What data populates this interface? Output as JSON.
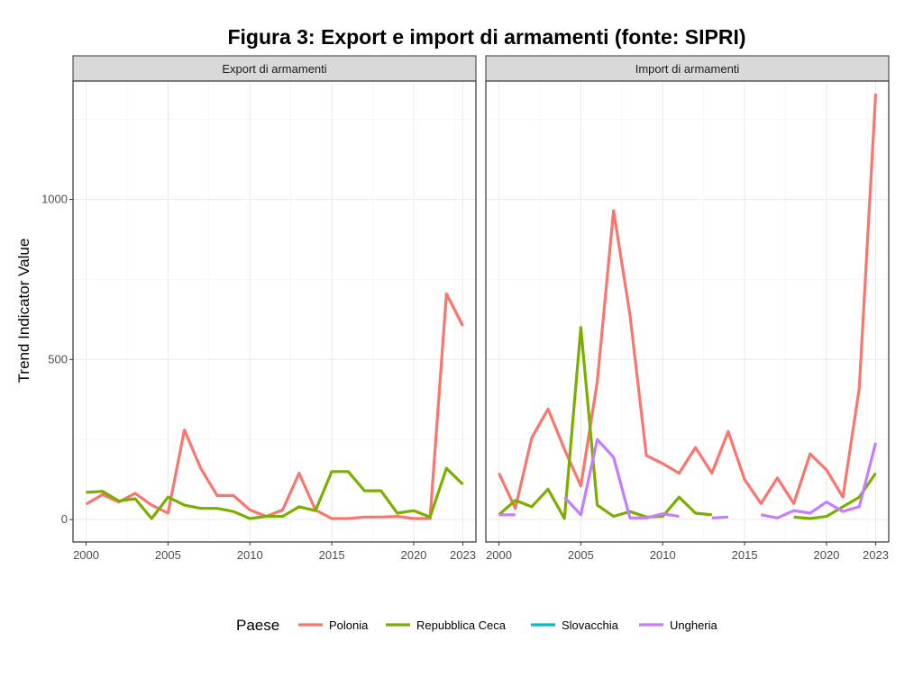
{
  "chart_data": {
    "type": "line",
    "title": "Figura 3: Export e import di armamenti (fonte: SIPRI)",
    "ylabel": "Trend Indicator Value",
    "xlabel": "",
    "ylim": [
      -70,
      1370
    ],
    "xlim": [
      1999.2,
      2023.8
    ],
    "x_ticks": [
      2000,
      2005,
      2010,
      2015,
      2020,
      2023
    ],
    "y_ticks": [
      0,
      500,
      1000
    ],
    "grid": true,
    "legend": {
      "title": "Paese",
      "position": "bottom",
      "entries": [
        {
          "name": "Polonia",
          "color": "#F8766D"
        },
        {
          "name": "Repubblica Ceca",
          "color": "#7CAE00"
        },
        {
          "name": "Slovacchia",
          "color": "#00BFC4"
        },
        {
          "name": "Ungheria",
          "color": "#C77CFF"
        }
      ]
    },
    "panels": [
      {
        "strip": "Export di armamenti",
        "series": [
          {
            "name": "Polonia",
            "color": "#F8766D",
            "segments": [
              [
                [
                  2000,
                  48
                ],
                [
                  2001,
                  78
                ],
                [
                  2002,
                  55
                ],
                [
                  2003,
                  82
                ],
                [
                  2004,
                  45
                ],
                [
                  2005,
                  20
                ],
                [
                  2006,
                  280
                ],
                [
                  2007,
                  160
                ],
                [
                  2008,
                  75
                ],
                [
                  2009,
                  75
                ],
                [
                  2010,
                  30
                ],
                [
                  2011,
                  10
                ],
                [
                  2012,
                  30
                ],
                [
                  2013,
                  145
                ],
                [
                  2014,
                  30
                ],
                [
                  2015,
                  3
                ],
                [
                  2016,
                  3
                ],
                [
                  2017,
                  8
                ],
                [
                  2018,
                  8
                ],
                [
                  2019,
                  10
                ],
                [
                  2020,
                  3
                ],
                [
                  2021,
                  3
                ],
                [
                  2022,
                  705
                ],
                [
                  2023,
                  605
                ]
              ]
            ]
          },
          {
            "name": "Repubblica Ceca",
            "color": "#7CAE00",
            "segments": [
              [
                [
                  2000,
                  85
                ],
                [
                  2001,
                  88
                ],
                [
                  2002,
                  58
                ],
                [
                  2003,
                  65
                ],
                [
                  2004,
                  3
                ],
                [
                  2005,
                  70
                ],
                [
                  2006,
                  45
                ],
                [
                  2007,
                  35
                ],
                [
                  2008,
                  35
                ],
                [
                  2009,
                  25
                ],
                [
                  2010,
                  3
                ],
                [
                  2011,
                  10
                ],
                [
                  2012,
                  10
                ],
                [
                  2013,
                  40
                ],
                [
                  2014,
                  28
                ],
                [
                  2015,
                  150
                ],
                [
                  2016,
                  150
                ],
                [
                  2017,
                  90
                ],
                [
                  2018,
                  90
                ],
                [
                  2019,
                  20
                ],
                [
                  2020,
                  28
                ],
                [
                  2021,
                  8
                ],
                [
                  2022,
                  160
                ],
                [
                  2023,
                  110
                ]
              ]
            ]
          }
        ]
      },
      {
        "strip": "Import di armamenti",
        "series": [
          {
            "name": "Polonia",
            "color": "#F8766D",
            "segments": [
              [
                [
                  2000,
                  145
                ],
                [
                  2001,
                  35
                ],
                [
                  2002,
                  255
                ],
                [
                  2003,
                  345
                ],
                [
                  2004,
                  220
                ],
                [
                  2005,
                  105
                ],
                [
                  2006,
                  430
                ],
                [
                  2007,
                  965
                ],
                [
                  2008,
                  640
                ],
                [
                  2009,
                  200
                ],
                [
                  2010,
                  175
                ],
                [
                  2011,
                  145
                ],
                [
                  2012,
                  225
                ],
                [
                  2013,
                  145
                ],
                [
                  2014,
                  275
                ],
                [
                  2015,
                  125
                ],
                [
                  2016,
                  50
                ],
                [
                  2017,
                  130
                ],
                [
                  2018,
                  50
                ],
                [
                  2019,
                  205
                ],
                [
                  2020,
                  155
                ],
                [
                  2021,
                  70
                ],
                [
                  2022,
                  410
                ],
                [
                  2023,
                  1330
                ]
              ]
            ]
          },
          {
            "name": "Repubblica Ceca",
            "color": "#7CAE00",
            "segments": [
              [
                [
                  2000,
                  15
                ],
                [
                  2001,
                  60
                ],
                [
                  2002,
                  40
                ],
                [
                  2003,
                  95
                ],
                [
                  2004,
                  3
                ],
                [
                  2005,
                  600
                ],
                [
                  2006,
                  45
                ],
                [
                  2007,
                  10
                ],
                [
                  2008,
                  25
                ],
                [
                  2009,
                  8
                ],
                [
                  2010,
                  10
                ],
                [
                  2011,
                  70
                ],
                [
                  2012,
                  20
                ],
                [
                  2013,
                  15
                ]
              ],
              [
                [
                  2018,
                  8
                ],
                [
                  2019,
                  3
                ],
                [
                  2020,
                  10
                ],
                [
                  2021,
                  40
                ],
                [
                  2022,
                  70
                ],
                [
                  2023,
                  145
                ]
              ]
            ]
          },
          {
            "name": "Ungheria",
            "color": "#C77CFF",
            "segments": [
              [
                [
                  2000,
                  15
                ],
                [
                  2001,
                  15
                ]
              ],
              [
                [
                  2004,
                  70
                ],
                [
                  2005,
                  15
                ],
                [
                  2006,
                  250
                ],
                [
                  2007,
                  195
                ],
                [
                  2008,
                  5
                ],
                [
                  2009,
                  5
                ],
                [
                  2010,
                  18
                ],
                [
                  2011,
                  10
                ]
              ],
              [
                [
                  2013,
                  5
                ],
                [
                  2014,
                  8
                ]
              ],
              [
                [
                  2016,
                  15
                ],
                [
                  2017,
                  5
                ],
                [
                  2018,
                  28
                ],
                [
                  2019,
                  20
                ],
                [
                  2020,
                  55
                ],
                [
                  2021,
                  25
                ],
                [
                  2022,
                  40
                ],
                [
                  2023,
                  240
                ]
              ]
            ]
          }
        ]
      }
    ]
  }
}
